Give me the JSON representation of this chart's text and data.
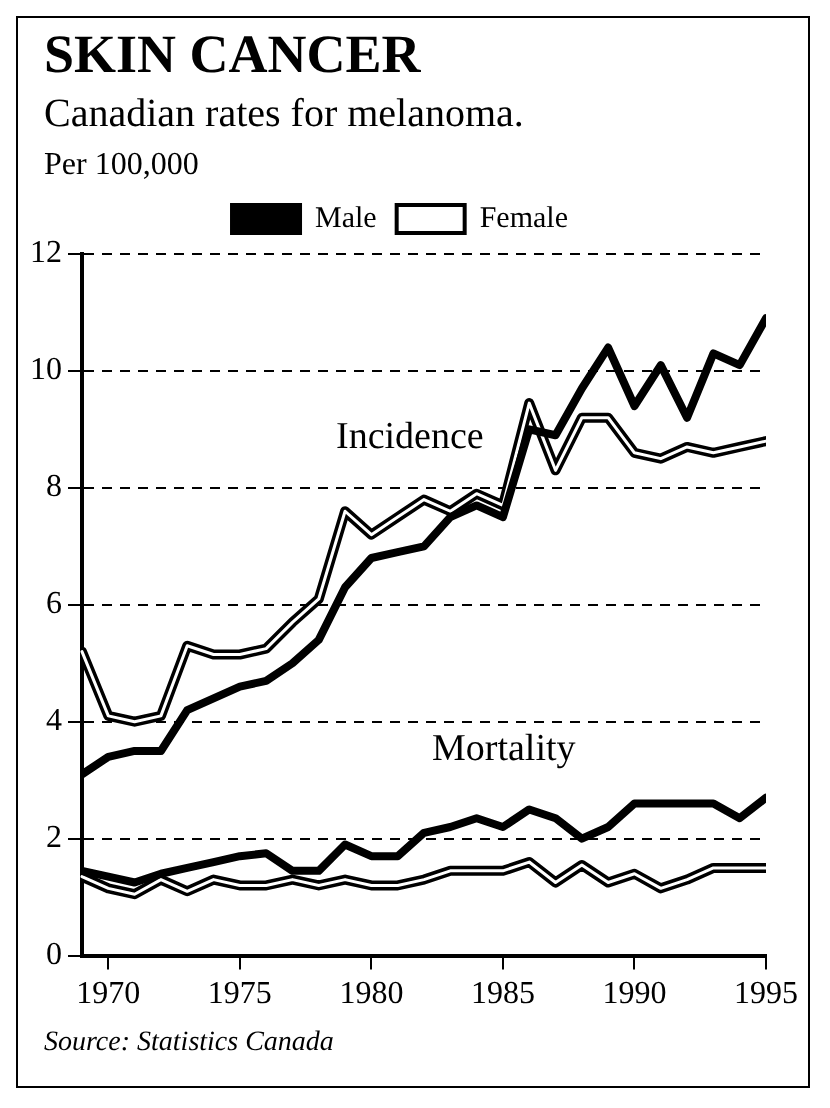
{
  "chart_data": {
    "type": "line",
    "title": "SKIN CANCER",
    "subtitle": "Canadian rates for melanoma.",
    "ylabel": "Per 100,000",
    "x": [
      1969,
      1970,
      1971,
      1972,
      1973,
      1974,
      1975,
      1976,
      1977,
      1978,
      1979,
      1980,
      1981,
      1982,
      1983,
      1984,
      1985,
      1986,
      1987,
      1988,
      1989,
      1990,
      1991,
      1992,
      1993,
      1994,
      1995
    ],
    "xlim": [
      1969,
      1995
    ],
    "xticks": [
      1970,
      1975,
      1980,
      1985,
      1990,
      1995
    ],
    "ylim": [
      0,
      12
    ],
    "yticks": [
      0,
      2,
      4,
      6,
      8,
      10,
      12
    ],
    "grid": "y",
    "legend": "top",
    "line_style": "solid",
    "marker": "none",
    "series": [
      {
        "name": "Male",
        "color": "#000000",
        "values": [
          3.1,
          3.4,
          3.5,
          3.5,
          4.2,
          4.4,
          4.6,
          4.7,
          5.0,
          5.4,
          6.3,
          6.8,
          6.9,
          7.0,
          7.5,
          7.7,
          7.5,
          9.0,
          8.9,
          9.7,
          10.4,
          9.4,
          10.1,
          9.2,
          10.3,
          10.1,
          10.9
        ]
      },
      {
        "name": "Female",
        "color": "#000000",
        "values": [
          5.2,
          4.1,
          4.0,
          4.1,
          5.3,
          5.15,
          5.15,
          5.25,
          5.7,
          6.1,
          7.6,
          7.2,
          7.5,
          7.8,
          7.6,
          7.9,
          7.7,
          9.45,
          8.3,
          9.2,
          9.2,
          8.6,
          8.5,
          8.7,
          8.6,
          8.7,
          8.8
        ]
      },
      {
        "color": "#000000",
        "values": [
          1.45,
          1.35,
          1.25,
          1.4,
          1.5,
          1.6,
          1.7,
          1.75,
          1.45,
          1.45,
          1.9,
          1.7,
          1.7,
          2.1,
          2.2,
          2.35,
          2.2,
          2.5,
          2.35,
          2.0,
          2.2,
          2.6,
          2.6,
          2.6,
          2.6,
          2.35,
          2.7
        ]
      },
      {
        "color": "#000000",
        "values": [
          1.35,
          1.15,
          1.05,
          1.3,
          1.1,
          1.3,
          1.2,
          1.2,
          1.3,
          1.2,
          1.3,
          1.2,
          1.2,
          1.3,
          1.45,
          1.45,
          1.45,
          1.6,
          1.25,
          1.55,
          1.25,
          1.4,
          1.15,
          1.3,
          1.5,
          1.5,
          1.5
        ]
      }
    ],
    "annotations": [
      "Incidence",
      "Mortality",
      "Source: Statistics Canada"
    ]
  }
}
